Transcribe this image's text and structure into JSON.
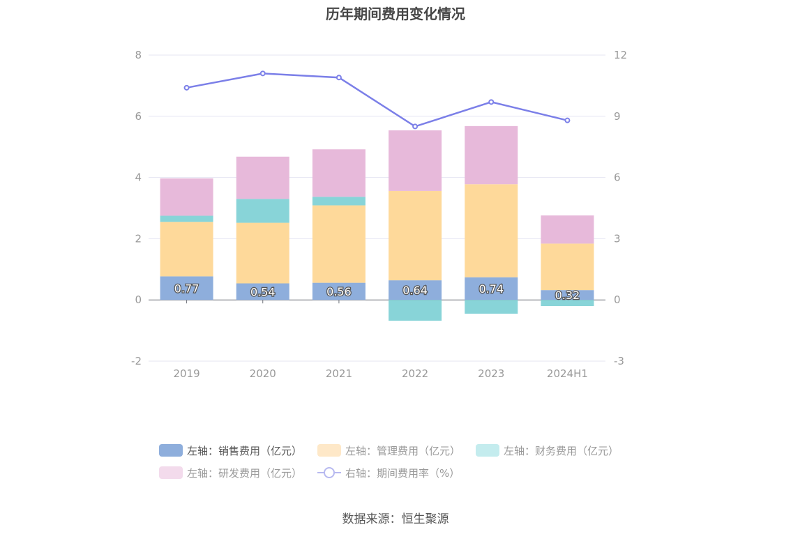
{
  "chart_data": {
    "type": "bar",
    "title": "历年期间费用变化情况",
    "categories": [
      "2019",
      "2020",
      "2021",
      "2022",
      "2023",
      "2024H1"
    ],
    "stacked": true,
    "left_axis": {
      "ylim": [
        -2,
        8
      ],
      "ticks": [
        "-2",
        "0",
        "2",
        "4",
        "6",
        "8"
      ]
    },
    "right_axis": {
      "ylim": [
        -3,
        12
      ],
      "ticks": [
        "-3",
        "0",
        "3",
        "6",
        "9",
        "12"
      ]
    },
    "series": [
      {
        "name": "左轴：销售费用（亿元）",
        "axis": "left",
        "color": "#8eaedc",
        "values": [
          0.77,
          0.54,
          0.56,
          0.64,
          0.74,
          0.32
        ],
        "labels": [
          "0.77",
          "0.54",
          "0.56",
          "0.64",
          "0.74",
          "0.32"
        ]
      },
      {
        "name": "左轴：管理费用（亿元）",
        "axis": "left",
        "color": "#fed99a",
        "values": [
          1.78,
          1.98,
          2.53,
          2.92,
          3.04,
          1.52
        ]
      },
      {
        "name": "左轴：财务费用（亿元）",
        "axis": "left",
        "color": "#88d4d8",
        "values": [
          0.2,
          0.78,
          0.28,
          -0.68,
          -0.45,
          -0.2
        ]
      },
      {
        "name": "左轴：研发费用（亿元）",
        "axis": "left",
        "color": "#e7b9da",
        "values": [
          1.22,
          1.38,
          1.55,
          1.98,
          1.9,
          0.92
        ]
      },
      {
        "name": "右轴：期间费用率（%）",
        "axis": "right",
        "type": "line",
        "color": "#7b7fe8",
        "values": [
          10.4,
          11.1,
          10.9,
          8.5,
          9.7,
          8.8
        ]
      }
    ]
  },
  "legend": {
    "sales": "左轴：销售费用（亿元）",
    "admin": "左轴：管理费用（亿元）",
    "finance": "左轴：财务费用（亿元）",
    "rnd": "左轴：研发费用（亿元）",
    "rate": "右轴：期间费用率（%）"
  },
  "colors": {
    "sales": "#8eaedc",
    "admin": "#fed99a",
    "finance": "#88d4d8",
    "rnd": "#e7b9da",
    "rate": "#7b7fe8"
  },
  "source": "数据来源：恒生聚源"
}
